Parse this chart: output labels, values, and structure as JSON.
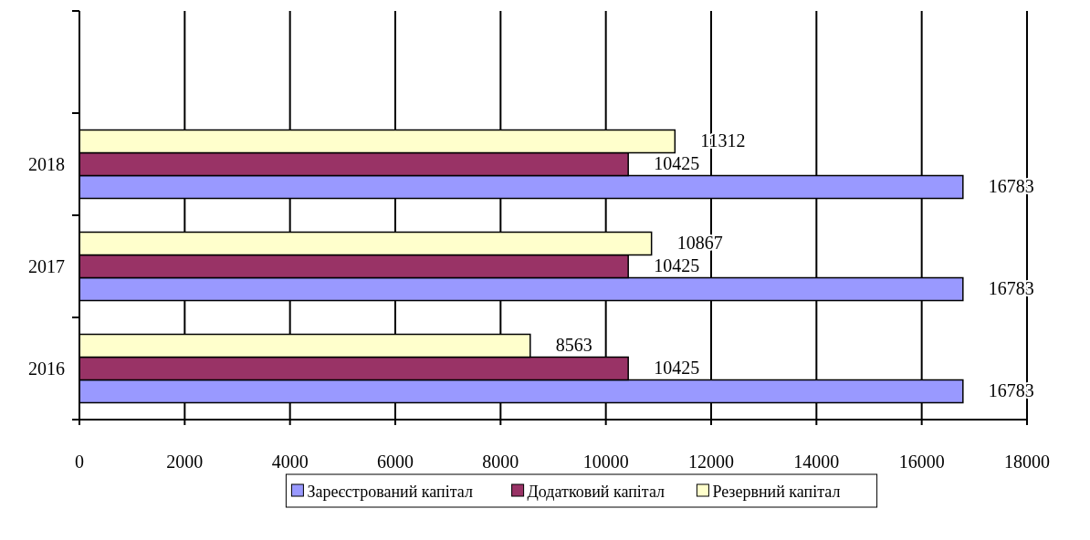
{
  "chart_data": {
    "type": "bar",
    "orientation": "horizontal",
    "categories": [
      null,
      "2018",
      "2017",
      "2016"
    ],
    "series": [
      {
        "name": "Зареєстрований капітал",
        "color": "#9999ff",
        "values": [
          null,
          16783,
          16783,
          16783
        ]
      },
      {
        "name": "Додатковий капітал",
        "color": "#993366",
        "values": [
          null,
          10425,
          10425,
          10425
        ]
      },
      {
        "name": "Резервний капітал",
        "color": "#ffffcc",
        "values": [
          null,
          11312,
          10867,
          8563
        ]
      }
    ],
    "xlim": [
      0,
      18000
    ],
    "xticks": [
      0,
      2000,
      4000,
      6000,
      8000,
      10000,
      12000,
      14000,
      16000,
      18000
    ],
    "grid": "x",
    "legend": "bottom",
    "data_labels": true
  }
}
